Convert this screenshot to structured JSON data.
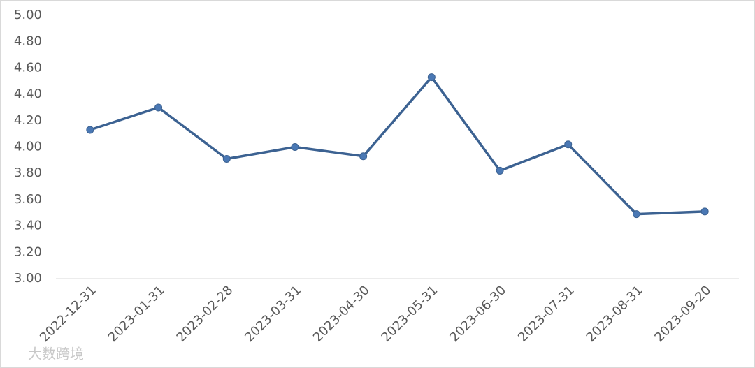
{
  "chart_data": {
    "type": "line",
    "categories": [
      "2022-12-31",
      "2023-01-31",
      "2023-02-28",
      "2023-03-31",
      "2023-04-30",
      "2023-05-31",
      "2023-06-30",
      "2023-07-31",
      "2023-08-31",
      "2023-09-20"
    ],
    "series": [
      {
        "color": "#3c6292",
        "values": [
          4.13,
          4.3,
          3.91,
          4.0,
          3.93,
          4.53,
          3.82,
          4.02,
          3.49,
          3.51
        ]
      }
    ],
    "ylim": [
      3,
      5
    ],
    "yticks": [
      {
        "value": 3,
        "label": "3.00"
      },
      {
        "value": 3.2,
        "label": "3.20"
      },
      {
        "value": 3.4,
        "label": "3.40"
      },
      {
        "value": 3.6,
        "label": "3.60"
      },
      {
        "value": 3.8,
        "label": "3.80"
      },
      {
        "value": 4,
        "label": "4.00"
      },
      {
        "value": 4.2,
        "label": "4.20"
      },
      {
        "value": 4.4,
        "label": "4.40"
      },
      {
        "value": 4.6,
        "label": "4.60"
      },
      {
        "value": 4.8,
        "label": "4.80"
      },
      {
        "value": 5,
        "label": "5.00"
      }
    ],
    "grid": false,
    "watermark": "大数跨境"
  }
}
